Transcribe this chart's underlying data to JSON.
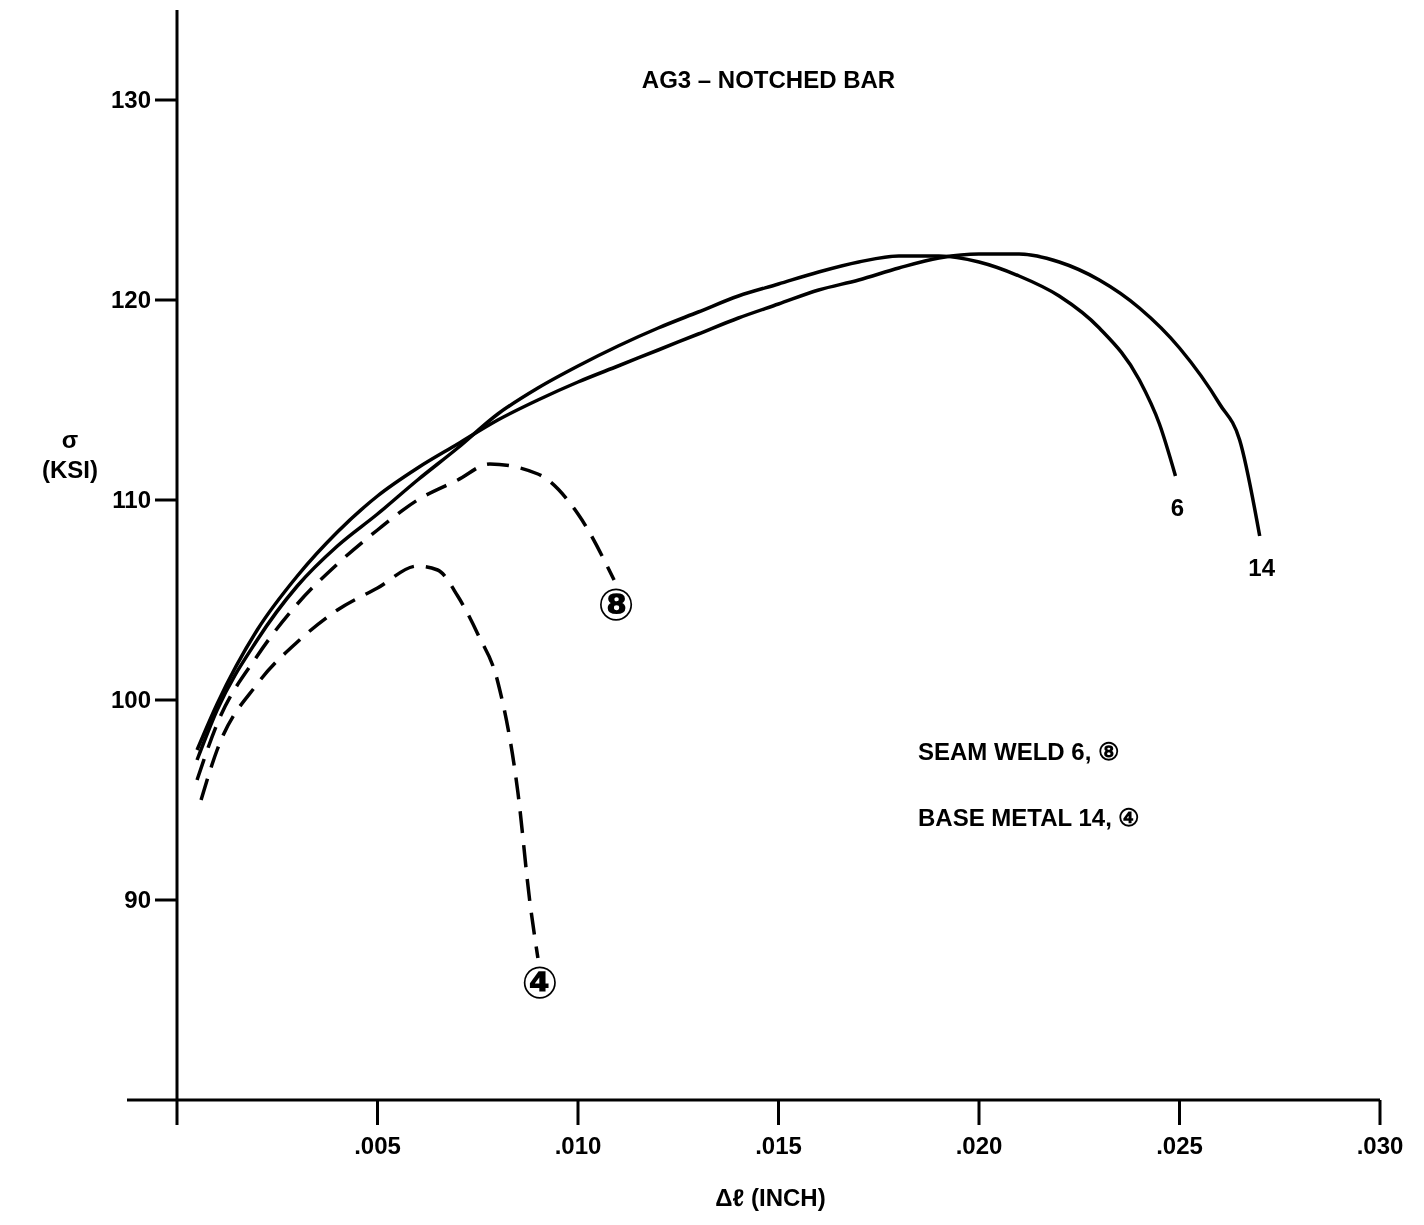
{
  "chart_data": {
    "type": "line",
    "title": "AG3 – NOTCHED BAR",
    "xlabel": "Δℓ (INCH)",
    "ylabel": "σ (KSI)",
    "xlim": [
      0,
      0.03
    ],
    "xticks": [
      {
        "value": 0.005,
        "label": ".005"
      },
      {
        "value": 0.01,
        "label": ".010"
      },
      {
        "value": 0.015,
        "label": ".015"
      },
      {
        "value": 0.02,
        "label": ".020"
      },
      {
        "value": 0.025,
        "label": ".025"
      },
      {
        "value": 0.03,
        "label": ".030"
      }
    ],
    "ylim": [
      80,
      134.5
    ],
    "yticks": [
      90,
      100,
      110,
      120,
      130
    ],
    "grid": false,
    "marker": "none",
    "annotations": [
      "SEAM WELD 6, ⑧",
      "BASE METAL 14, ④"
    ],
    "series": [
      {
        "name": "6",
        "color": "#000000",
        "line_style": "solid",
        "x": [
          0.0005,
          0.001,
          0.002,
          0.003,
          0.004,
          0.005,
          0.006,
          0.007,
          0.008,
          0.009,
          0.01,
          0.011,
          0.012,
          0.013,
          0.014,
          0.015,
          0.016,
          0.017,
          0.018,
          0.019,
          0.02,
          0.021,
          0.022,
          0.023,
          0.024,
          0.0245,
          0.0249
        ],
        "values": [
          97.0,
          99.5,
          103.0,
          105.7,
          107.7,
          109.3,
          111.0,
          112.6,
          114.3,
          115.6,
          116.7,
          117.7,
          118.6,
          119.4,
          120.2,
          120.8,
          121.4,
          121.9,
          122.2,
          122.2,
          121.9,
          121.2,
          120.2,
          118.6,
          116.0,
          113.8,
          111.2
        ]
      },
      {
        "name": "14",
        "color": "#000000",
        "line_style": "solid",
        "x": [
          0.0005,
          0.001,
          0.002,
          0.003,
          0.004,
          0.005,
          0.006,
          0.007,
          0.008,
          0.009,
          0.01,
          0.011,
          0.012,
          0.013,
          0.014,
          0.015,
          0.016,
          0.017,
          0.018,
          0.019,
          0.02,
          0.021,
          0.022,
          0.023,
          0.024,
          0.025,
          0.026,
          0.0265,
          0.027
        ],
        "values": [
          97.5,
          99.8,
          103.5,
          106.2,
          108.4,
          110.2,
          111.6,
          112.8,
          114.0,
          115.0,
          115.9,
          116.7,
          117.5,
          118.3,
          119.1,
          119.8,
          120.5,
          121.0,
          121.6,
          122.1,
          122.3,
          122.3,
          121.9,
          121.0,
          119.6,
          117.6,
          114.8,
          113.0,
          108.2
        ]
      },
      {
        "name": "⑧",
        "color": "#000000",
        "line_style": "dashed",
        "x": [
          0.0005,
          0.001,
          0.002,
          0.003,
          0.004,
          0.005,
          0.006,
          0.007,
          0.0078,
          0.009,
          0.01,
          0.0109
        ],
        "values": [
          96.0,
          98.8,
          102.2,
          104.8,
          106.8,
          108.5,
          110.0,
          111.0,
          111.8,
          111.3,
          109.3,
          106.0
        ]
      },
      {
        "name": "④",
        "color": "#000000",
        "line_style": "dashed",
        "x": [
          0.0006,
          0.001,
          0.002,
          0.003,
          0.004,
          0.005,
          0.006,
          0.0065,
          0.007,
          0.0075,
          0.008,
          0.0085,
          0.0088,
          0.009
        ],
        "values": [
          95.0,
          97.5,
          100.8,
          102.9,
          104.5,
          105.6,
          106.7,
          106.5,
          105.2,
          103.3,
          100.9,
          95.4,
          89.9,
          87.1
        ]
      }
    ]
  }
}
